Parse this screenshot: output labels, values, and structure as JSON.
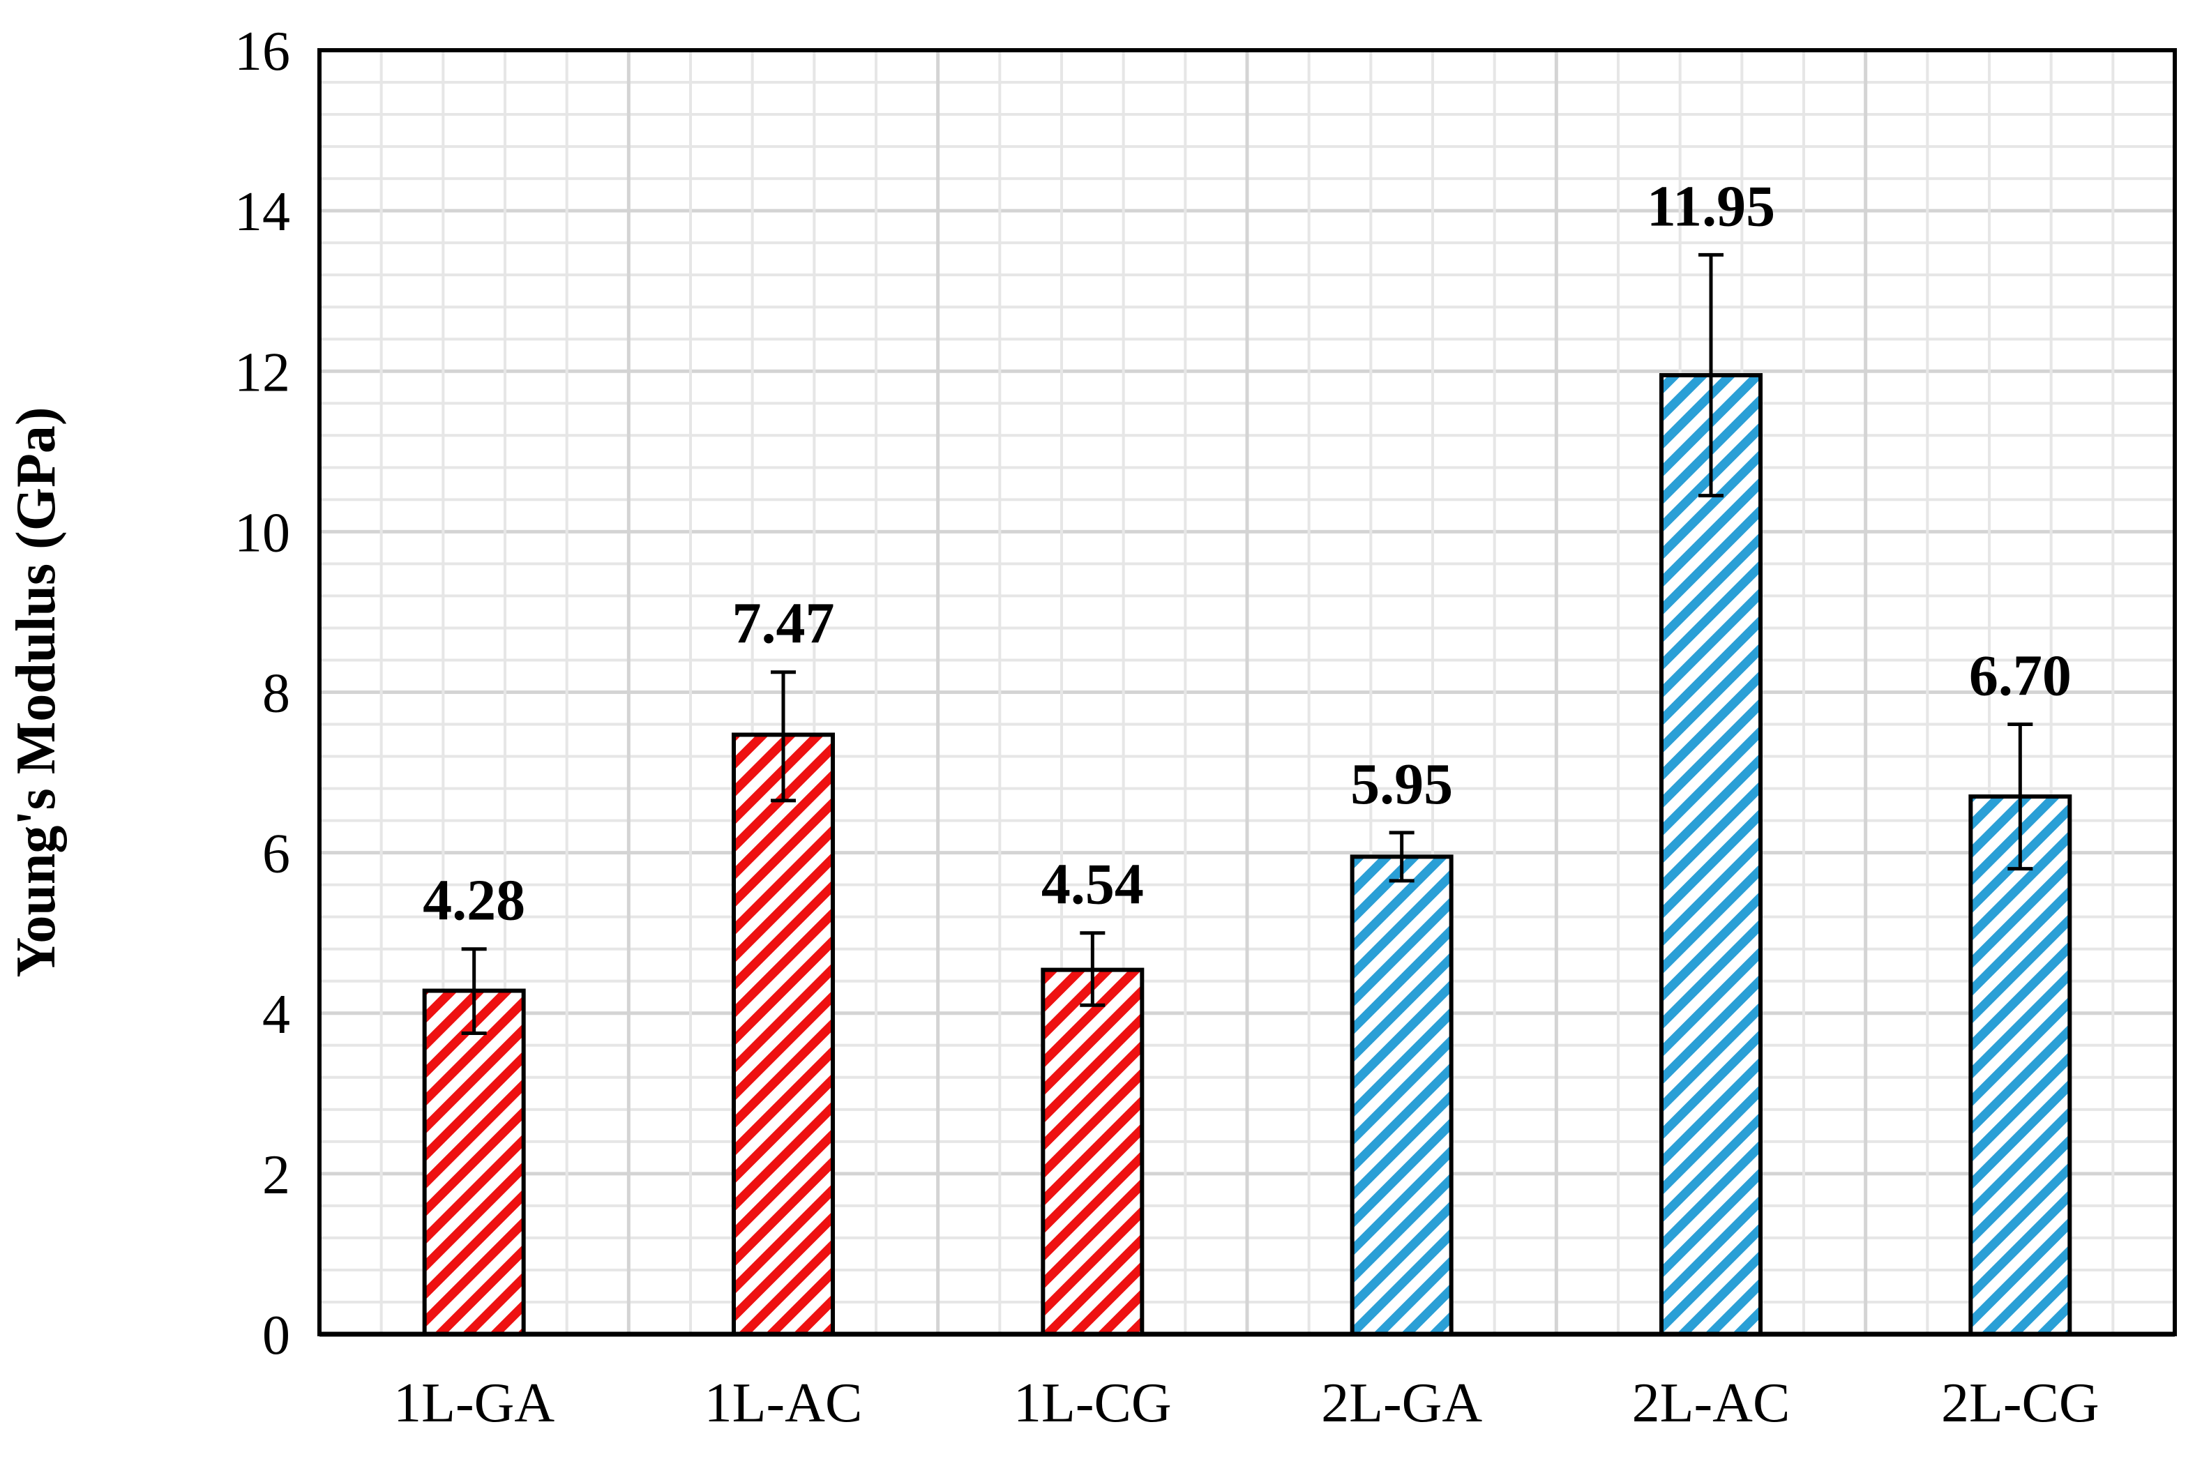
{
  "chart_data": {
    "type": "bar",
    "title": "",
    "xlabel": "",
    "ylabel": "Young's Modulus (GPa)",
    "ylim": [
      0,
      16
    ],
    "y_ticks": [
      0,
      2,
      4,
      6,
      8,
      10,
      12,
      14,
      16
    ],
    "y_tick_labels": [
      "0",
      "2",
      "4",
      "6",
      "8",
      "10",
      "12",
      "14",
      "16"
    ],
    "grid": true,
    "legend": "none",
    "categories": [
      "1L-GA",
      "1L-AC",
      "1L-CG",
      "2L-GA",
      "2L-AC",
      "2L-CG"
    ],
    "values": [
      4.28,
      7.47,
      4.54,
      5.95,
      11.95,
      6.7
    ],
    "data_labels": [
      "4.28",
      "7.47",
      "4.54",
      "5.95",
      "11.95",
      "6.70"
    ],
    "error_bars": [
      {
        "low": 3.75,
        "high": 4.8
      },
      {
        "low": 6.65,
        "high": 8.25
      },
      {
        "low": 4.1,
        "high": 5.0
      },
      {
        "low": 5.65,
        "high": 6.25
      },
      {
        "low": 10.45,
        "high": 13.45
      },
      {
        "low": 5.8,
        "high": 7.6
      }
    ],
    "bar_fill": "hatched",
    "bar_colors": [
      "#ee1111",
      "#ee1111",
      "#ee1111",
      "#2a9fd6",
      "#2a9fd6",
      "#2a9fd6"
    ]
  }
}
